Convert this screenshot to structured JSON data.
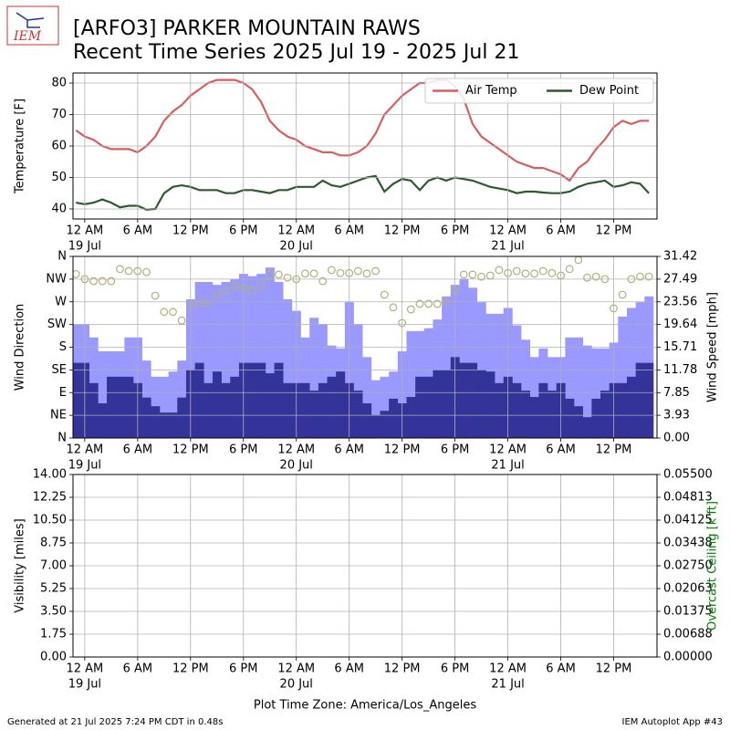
{
  "logo": "IEM",
  "title": [
    "[ARFO3] PARKER MOUNTAIN RAWS",
    "Recent Time Series 2025 Jul 19 - 2025 Jul 21"
  ],
  "x_label": "Plot Time Zone: America/Los_Angeles",
  "footer": {
    "left": "Generated at 21 Jul 2025 7:24 PM CDT in 0.48s",
    "right": "IEM Autoplot App #43"
  },
  "chart_data": [
    {
      "type": "line",
      "ylabel": "Temperature [F]",
      "legend": "upper right",
      "grid": true,
      "xlim": [
        "2025-07-18 22:40",
        "2025-07-21 16:55"
      ],
      "xticks": [
        {
          "value": "2025-07-19 00:00",
          "label": "12 AM"
        },
        {
          "value": "2025-07-19 06:00",
          "label": "6 AM"
        },
        {
          "value": "2025-07-19 12:00",
          "label": "12 PM"
        },
        {
          "value": "2025-07-19 18:00",
          "label": "6 PM"
        },
        {
          "value": "2025-07-20 00:00",
          "label": "12 AM"
        },
        {
          "value": "2025-07-20 06:00",
          "label": "6 AM"
        },
        {
          "value": "2025-07-20 12:00",
          "label": "12 PM"
        },
        {
          "value": "2025-07-20 18:00",
          "label": "6 PM"
        },
        {
          "value": "2025-07-21 00:00",
          "label": "12 AM"
        },
        {
          "value": "2025-07-21 06:00",
          "label": "6 AM"
        },
        {
          "value": "2025-07-21 12:00",
          "label": "12 PM"
        }
      ],
      "xdates": [
        {
          "value": "2025-07-19 00:00",
          "label": "19 Jul"
        },
        {
          "value": "2025-07-20 00:00",
          "label": "20 Jul"
        },
        {
          "value": "2025-07-21 00:00",
          "label": "21 Jul"
        }
      ],
      "ylim": [
        36.8,
        83.2
      ],
      "yticks": [
        40,
        50,
        60,
        70,
        80
      ],
      "x": [
        "2025-07-18 23:00",
        "2025-07-19 00:00",
        "2025-07-19 01:00",
        "2025-07-19 02:00",
        "2025-07-19 03:00",
        "2025-07-19 04:00",
        "2025-07-19 05:00",
        "2025-07-19 06:00",
        "2025-07-19 07:00",
        "2025-07-19 08:00",
        "2025-07-19 09:00",
        "2025-07-19 10:00",
        "2025-07-19 11:00",
        "2025-07-19 12:00",
        "2025-07-19 13:00",
        "2025-07-19 14:00",
        "2025-07-19 15:00",
        "2025-07-19 16:00",
        "2025-07-19 17:00",
        "2025-07-19 18:00",
        "2025-07-19 19:00",
        "2025-07-19 20:00",
        "2025-07-19 21:00",
        "2025-07-19 22:00",
        "2025-07-19 23:00",
        "2025-07-20 00:00",
        "2025-07-20 01:00",
        "2025-07-20 02:00",
        "2025-07-20 03:00",
        "2025-07-20 04:00",
        "2025-07-20 05:00",
        "2025-07-20 06:00",
        "2025-07-20 07:00",
        "2025-07-20 08:00",
        "2025-07-20 09:00",
        "2025-07-20 10:00",
        "2025-07-20 11:00",
        "2025-07-20 12:00",
        "2025-07-20 13:00",
        "2025-07-20 14:00",
        "2025-07-20 15:00",
        "2025-07-20 16:00",
        "2025-07-20 17:00",
        "2025-07-20 18:00",
        "2025-07-20 19:00",
        "2025-07-20 20:00",
        "2025-07-20 21:00",
        "2025-07-20 22:00",
        "2025-07-20 23:00",
        "2025-07-21 00:00",
        "2025-07-21 01:00",
        "2025-07-21 02:00",
        "2025-07-21 03:00",
        "2025-07-21 04:00",
        "2025-07-21 05:00",
        "2025-07-21 06:00",
        "2025-07-21 07:00",
        "2025-07-21 08:00",
        "2025-07-21 09:00",
        "2025-07-21 10:00",
        "2025-07-21 11:00",
        "2025-07-21 12:00",
        "2025-07-21 13:00",
        "2025-07-21 14:00",
        "2025-07-21 15:00",
        "2025-07-21 16:00"
      ],
      "series": [
        {
          "name": "Air Temp",
          "color": "#d65f5f",
          "values": [
            65,
            63,
            62,
            60,
            59,
            59,
            59,
            58,
            60,
            63,
            68,
            71,
            73,
            76,
            78,
            80,
            81,
            81,
            81,
            80,
            78,
            74,
            68,
            65,
            63,
            62,
            60,
            59,
            58,
            58,
            57,
            57,
            58,
            60,
            64,
            70,
            73,
            76,
            78,
            80,
            80,
            81,
            81,
            79,
            75,
            67,
            63,
            61,
            59,
            57,
            55,
            54,
            53,
            53,
            52,
            51,
            49,
            53,
            55,
            59,
            62,
            66,
            68,
            67,
            68,
            68
          ]
        },
        {
          "name": "Dew Point",
          "color": "#2d5a2d",
          "values": [
            42,
            41.5,
            42,
            43,
            42,
            40.5,
            41,
            41,
            39.8,
            40,
            45,
            47,
            47.5,
            47,
            46,
            46,
            46,
            45,
            45,
            46,
            46,
            45.5,
            45,
            46,
            46,
            47,
            47,
            47,
            49,
            47.5,
            47,
            48,
            49,
            50,
            50.5,
            45.5,
            48,
            49.5,
            49,
            46,
            49,
            50,
            49,
            50,
            49.5,
            49,
            48,
            47,
            46.5,
            46,
            45,
            45.5,
            45.5,
            45.2,
            45,
            45,
            45.5,
            47,
            48,
            48.5,
            49,
            47,
            47.5,
            48.5,
            48,
            45
          ]
        }
      ]
    },
    {
      "type": "bar",
      "ylabel": "Wind Direction",
      "y2label": "Wind Speed [mph]",
      "grid": true,
      "xlim": [
        "2025-07-18 22:40",
        "2025-07-21 16:55"
      ],
      "xticks": [
        {
          "value": "2025-07-19 00:00",
          "label": "12 AM"
        },
        {
          "value": "2025-07-19 06:00",
          "label": "6 AM"
        },
        {
          "value": "2025-07-19 12:00",
          "label": "12 PM"
        },
        {
          "value": "2025-07-19 18:00",
          "label": "6 PM"
        },
        {
          "value": "2025-07-20 00:00",
          "label": "12 AM"
        },
        {
          "value": "2025-07-20 06:00",
          "label": "6 AM"
        },
        {
          "value": "2025-07-20 12:00",
          "label": "12 PM"
        },
        {
          "value": "2025-07-20 18:00",
          "label": "6 PM"
        },
        {
          "value": "2025-07-21 00:00",
          "label": "12 AM"
        },
        {
          "value": "2025-07-21 06:00",
          "label": "6 AM"
        },
        {
          "value": "2025-07-21 12:00",
          "label": "12 PM"
        }
      ],
      "xdates": [
        {
          "value": "2025-07-19 00:00",
          "label": "19 Jul"
        },
        {
          "value": "2025-07-20 00:00",
          "label": "20 Jul"
        },
        {
          "value": "2025-07-21 00:00",
          "label": "21 Jul"
        }
      ],
      "ylim": [
        0,
        360
      ],
      "yticks": [
        {
          "value": 0,
          "label": "N"
        },
        {
          "value": 45,
          "label": "NE"
        },
        {
          "value": 90,
          "label": "E"
        },
        {
          "value": 135,
          "label": "SE"
        },
        {
          "value": 180,
          "label": "S"
        },
        {
          "value": 225,
          "label": "SW"
        },
        {
          "value": 270,
          "label": "W"
        },
        {
          "value": 315,
          "label": "NW"
        },
        {
          "value": 360,
          "label": "N"
        }
      ],
      "y2lim": [
        0,
        31.42
      ],
      "y2ticks": [
        {
          "value": 0,
          "label": "0.00"
        },
        3.93,
        7.85,
        11.78,
        15.71,
        19.64,
        23.56,
        27.49,
        31.42
      ],
      "x": [
        "2025-07-18 23:00",
        "2025-07-19 00:00",
        "2025-07-19 01:00",
        "2025-07-19 02:00",
        "2025-07-19 03:00",
        "2025-07-19 04:00",
        "2025-07-19 05:00",
        "2025-07-19 06:00",
        "2025-07-19 07:00",
        "2025-07-19 08:00",
        "2025-07-19 09:00",
        "2025-07-19 10:00",
        "2025-07-19 11:00",
        "2025-07-19 12:00",
        "2025-07-19 13:00",
        "2025-07-19 14:00",
        "2025-07-19 15:00",
        "2025-07-19 16:00",
        "2025-07-19 17:00",
        "2025-07-19 18:00",
        "2025-07-19 19:00",
        "2025-07-19 20:00",
        "2025-07-19 21:00",
        "2025-07-19 22:00",
        "2025-07-19 23:00",
        "2025-07-20 00:00",
        "2025-07-20 01:00",
        "2025-07-20 02:00",
        "2025-07-20 03:00",
        "2025-07-20 04:00",
        "2025-07-20 05:00",
        "2025-07-20 06:00",
        "2025-07-20 07:00",
        "2025-07-20 08:00",
        "2025-07-20 09:00",
        "2025-07-20 10:00",
        "2025-07-20 11:00",
        "2025-07-20 12:00",
        "2025-07-20 13:00",
        "2025-07-20 14:00",
        "2025-07-20 15:00",
        "2025-07-20 16:00",
        "2025-07-20 17:00",
        "2025-07-20 18:00",
        "2025-07-20 19:00",
        "2025-07-20 20:00",
        "2025-07-20 21:00",
        "2025-07-20 22:00",
        "2025-07-20 23:00",
        "2025-07-21 00:00",
        "2025-07-21 01:00",
        "2025-07-21 02:00",
        "2025-07-21 03:00",
        "2025-07-21 04:00",
        "2025-07-21 05:00",
        "2025-07-21 06:00",
        "2025-07-21 07:00",
        "2025-07-21 08:00",
        "2025-07-21 09:00",
        "2025-07-21 10:00",
        "2025-07-21 11:00",
        "2025-07-21 12:00",
        "2025-07-21 13:00",
        "2025-07-21 14:00",
        "2025-07-21 15:00",
        "2025-07-21 16:00"
      ],
      "series": [
        {
          "kind": "bar",
          "axis": "y2",
          "color": "#9999ff",
          "values": [
            19.7,
            19.7,
            17.4,
            15,
            15,
            15,
            17.4,
            17.4,
            13.4,
            10.6,
            10.6,
            11.5,
            13.4,
            24,
            27,
            27,
            26.5,
            27,
            27.5,
            28.4,
            28,
            28.4,
            29.5,
            27,
            24,
            22,
            17.4,
            20.8,
            19.7,
            16,
            15.5,
            23.5,
            19.7,
            14,
            10,
            10.6,
            11.5,
            15,
            18.5,
            18.5,
            19,
            20.5,
            24.5,
            26.5,
            27.5,
            26,
            23.5,
            21.5,
            21.5,
            22.5,
            19.5,
            17,
            14,
            15.5,
            14,
            14,
            17.4,
            17.4,
            16,
            15.5,
            15.5,
            16.5,
            21,
            22.5,
            23.5,
            24.5
          ]
        },
        {
          "kind": "bar",
          "axis": "y2",
          "color": "#333399",
          "values": [
            13,
            13,
            9.5,
            6,
            10.6,
            10.6,
            10.6,
            9.5,
            7,
            5.5,
            4.4,
            4.4,
            7,
            11.8,
            13,
            9.5,
            11.5,
            9.5,
            10.6,
            13,
            13,
            13,
            11.2,
            13,
            9.5,
            9.5,
            9.5,
            8.2,
            9.5,
            10.6,
            11.5,
            9.5,
            8.2,
            6,
            4,
            4.7,
            6.8,
            6,
            7.1,
            10.6,
            10.6,
            11.8,
            11.8,
            14,
            13,
            13,
            11.8,
            11.5,
            9.5,
            10.6,
            9.5,
            8.2,
            7.1,
            9.5,
            8.2,
            9.5,
            6.8,
            5.5,
            3.6,
            6.8,
            8.2,
            9.5,
            9.5,
            10.6,
            13,
            13
          ]
        },
        {
          "kind": "scatter",
          "axis": "y",
          "color": "#b0b07a",
          "values": [
            325,
            315,
            311,
            311,
            311,
            335,
            331,
            331,
            329,
            282,
            250,
            250,
            233,
            260,
            268,
            268,
            284,
            291,
            300,
            297,
            293,
            302,
            324,
            324,
            318,
            315,
            326,
            326,
            311,
            333,
            327,
            327,
            331,
            326,
            331,
            284,
            259,
            228,
            255,
            266,
            266,
            266,
            270,
            293,
            324,
            324,
            320,
            322,
            333,
            327,
            331,
            326,
            326,
            331,
            327,
            322,
            335,
            353,
            318,
            320,
            315,
            257,
            284,
            315,
            320,
            320
          ]
        }
      ]
    },
    {
      "type": "line",
      "ylabel": "Visibility [miles]",
      "y2label": "Overcast Ceiling [k ft]",
      "y2color": "#008000",
      "grid": true,
      "xlim": [
        "2025-07-18 22:40",
        "2025-07-21 16:55"
      ],
      "xticks": [
        {
          "value": "2025-07-19 00:00",
          "label": "12 AM"
        },
        {
          "value": "2025-07-19 06:00",
          "label": "6 AM"
        },
        {
          "value": "2025-07-19 12:00",
          "label": "12 PM"
        },
        {
          "value": "2025-07-19 18:00",
          "label": "6 PM"
        },
        {
          "value": "2025-07-20 00:00",
          "label": "12 AM"
        },
        {
          "value": "2025-07-20 06:00",
          "label": "6 AM"
        },
        {
          "value": "2025-07-20 12:00",
          "label": "12 PM"
        },
        {
          "value": "2025-07-20 18:00",
          "label": "6 PM"
        },
        {
          "value": "2025-07-21 00:00",
          "label": "12 AM"
        },
        {
          "value": "2025-07-21 06:00",
          "label": "6 AM"
        },
        {
          "value": "2025-07-21 12:00",
          "label": "12 PM"
        }
      ],
      "xdates": [
        {
          "value": "2025-07-19 00:00",
          "label": "19 Jul"
        },
        {
          "value": "2025-07-20 00:00",
          "label": "20 Jul"
        },
        {
          "value": "2025-07-21 00:00",
          "label": "21 Jul"
        }
      ],
      "ylim": [
        0,
        14
      ],
      "yticks": [
        {
          "value": 0,
          "label": "0.00"
        },
        {
          "value": 1.75,
          "label": "1.75"
        },
        {
          "value": 3.5,
          "label": "3.50"
        },
        {
          "value": 5.25,
          "label": "5.25"
        },
        {
          "value": 7,
          "label": "7.00"
        },
        {
          "value": 8.75,
          "label": "8.75"
        },
        {
          "value": 10.5,
          "label": "10.50"
        },
        {
          "value": 12.25,
          "label": "12.25"
        },
        {
          "value": 14,
          "label": "14.00"
        }
      ],
      "y2lim": [
        0,
        0.055
      ],
      "y2ticks": [
        {
          "value": 0,
          "label": "0.00000"
        },
        {
          "value": 0.006875,
          "label": "0.00688"
        },
        {
          "value": 0.01375,
          "label": "0.01375"
        },
        {
          "value": 0.020625,
          "label": "0.02063"
        },
        {
          "value": 0.0275,
          "label": "0.02750"
        },
        {
          "value": 0.034375,
          "label": "0.03438"
        },
        {
          "value": 0.04125,
          "label": "0.04125"
        },
        {
          "value": 0.048125,
          "label": "0.04813"
        },
        {
          "value": 0.055,
          "label": "0.05500"
        }
      ]
    }
  ]
}
